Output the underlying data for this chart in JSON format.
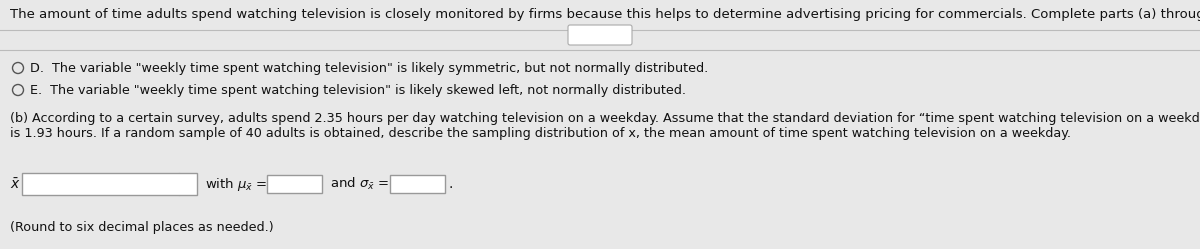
{
  "background_color": "#e8e8e8",
  "panel_color": "#ececec",
  "title_text": "The amount of time adults spend watching television is closely monitored by firms because this helps to determine advertising pricing for commercials. Complete parts (a) through (d).",
  "title_fontsize": 9.5,
  "option_D_text": "D.  The variable \"weekly time spent watching television\" is likely symmetric, but not normally distributed.",
  "option_E_text": "E.  The variable \"weekly time spent watching television\" is likely skewed left, not normally distributed.",
  "part_b_line1": "(b) According to a certain survey, adults spend 2.35 hours per day watching television on a weekday. Assume that the standard deviation for “time spent watching television on a weekday”",
  "part_b_line2": "is 1.93 hours. If a random sample of 40 adults is obtained, describe the sampling distribution of x, the mean amount of time spent watching television on a weekday.",
  "bottom_label": "(Round to six decimal places as needed.)",
  "text_color": "#111111",
  "box_color": "#ffffff",
  "box_border_color": "#999999",
  "separator_color": "#bbbbbb",
  "radio_color": "#555555"
}
